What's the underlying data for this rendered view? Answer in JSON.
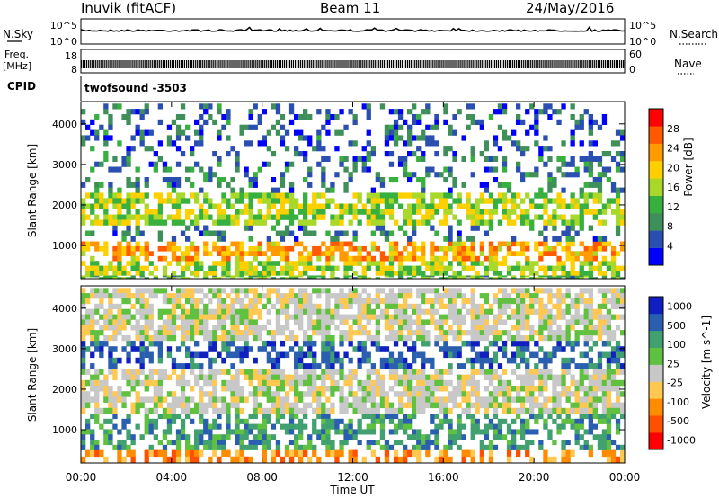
{
  "header": {
    "station": "Inuvik (fitACF)",
    "beam": "Beam 11",
    "date": "24/May/2016"
  },
  "noise_panel": {
    "left_label": "N.Sky",
    "left_ticks": [
      "10^5",
      "10^0"
    ],
    "right_label": "N.Search",
    "right_ticks": [
      "10^5",
      "10^0"
    ]
  },
  "freq_panel": {
    "left_label_1": "Freq.",
    "left_label_2": "[MHz]",
    "left_ticks": [
      "18",
      "8"
    ],
    "right_label": "Nave",
    "right_ticks": [
      "60",
      "0"
    ]
  },
  "cpid": {
    "label": "CPID",
    "value": "twofsound -3503"
  },
  "colors": {
    "power_scale": [
      "#0000ff",
      "#2a4fb0",
      "#3f8f5a",
      "#38b040",
      "#a8d82a",
      "#ffd000",
      "#ff9a00",
      "#ff5a00",
      "#ff0000"
    ],
    "velocity_scale": [
      "#ff0000",
      "#ff5000",
      "#ff8c00",
      "#ffc850",
      "#c8c8c8",
      "#60c040",
      "#40a070",
      "#2a5fb0",
      "#1020c0"
    ]
  },
  "chart_data": [
    {
      "type": "heatmap",
      "name": "power",
      "ylabel": "Slant Range [km]",
      "y_ticks": [
        1000,
        2000,
        3000,
        4000
      ],
      "ylim": [
        180,
        4550
      ],
      "x_ticks": [
        "00:00",
        "04:00",
        "08:00",
        "12:00",
        "16:00",
        "20:00",
        "00:00"
      ],
      "xlim_hours": [
        0,
        24
      ],
      "colorbar": {
        "label": "Power [dB]",
        "ticks": [
          4,
          8,
          12,
          16,
          20,
          24,
          28
        ],
        "range": [
          0,
          32
        ]
      },
      "bands": [
        {
          "range_km": [
            180,
            260
          ],
          "value": 12
        },
        {
          "range_km": [
            260,
            620
          ],
          "value": 16
        },
        {
          "range_km": [
            620,
            1100
          ],
          "value": 22
        },
        {
          "range_km": [
            1100,
            1500
          ],
          "value": 8
        },
        {
          "range_km": [
            1500,
            2300
          ],
          "value": 16
        },
        {
          "range_km": [
            2300,
            3200
          ],
          "value": 8
        },
        {
          "range_km": [
            3200,
            4500
          ],
          "value": 6
        }
      ]
    },
    {
      "type": "heatmap",
      "name": "velocity",
      "ylabel": "Slant Range [km]",
      "y_ticks": [
        1000,
        2000,
        3000,
        4000
      ],
      "ylim": [
        180,
        4550
      ],
      "x_ticks": [
        "00:00",
        "04:00",
        "08:00",
        "12:00",
        "16:00",
        "20:00",
        "00:00"
      ],
      "xlim_hours": [
        0,
        24
      ],
      "xlabel": "Time UT",
      "colorbar": {
        "label": "Velocity [m s^-1]",
        "ticks": [
          "1000",
          "500",
          "100",
          "25",
          "-25",
          "-100",
          "-500",
          "-1000"
        ]
      },
      "bands": [
        {
          "range_km": [
            180,
            500
          ],
          "value": -100
        },
        {
          "range_km": [
            500,
            1400
          ],
          "value": 100
        },
        {
          "range_km": [
            1400,
            2500
          ],
          "value": 0
        },
        {
          "range_km": [
            2500,
            3200
          ],
          "value": 500
        },
        {
          "range_km": [
            3200,
            4500
          ],
          "value": 0
        }
      ]
    }
  ]
}
